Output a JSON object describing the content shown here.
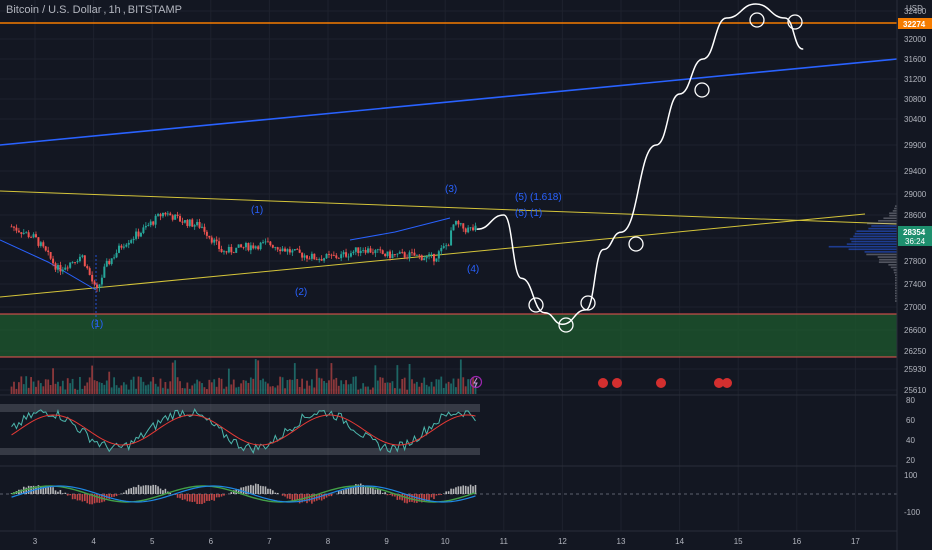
{
  "header": {
    "symbol": "Bitcoin / U.S. Dollar",
    "interval": "1h",
    "exchange": "BITSTAMP"
  },
  "price_axis": {
    "currency": "USD",
    "ticks": [
      "32400",
      "32000",
      "31600",
      "31200",
      "30800",
      "30400",
      "29900",
      "29400",
      "29000",
      "28600",
      "28200",
      "27800",
      "27400",
      "27000",
      "26600",
      "26250",
      "25930",
      "25610"
    ],
    "resistance_label": "32274",
    "current_price": "28354",
    "countdown": "36:24"
  },
  "time_axis": {
    "ticks": [
      "3",
      "4",
      "5",
      "6",
      "7",
      "8",
      "9",
      "10",
      "11",
      "12",
      "13",
      "14",
      "15",
      "16",
      "17"
    ]
  },
  "wave_labels": [
    "(1)",
    "(2)",
    "(3)",
    "(4)",
    "(5) (1.618)",
    "(5) (1)",
    "(1)"
  ],
  "oscillator_axis": {
    "ticks": [
      "80",
      "60",
      "40",
      "20"
    ]
  },
  "macd_axis": {
    "ticks": [
      "100",
      "-100"
    ]
  },
  "colors": {
    "background": "#131722",
    "up": "#26a69a",
    "down": "#ef5350",
    "resistance": "#f57c00",
    "channel": "#2962ff",
    "triangle": "#d4c43a",
    "support_zone": "#1e5a2e",
    "current_price_tag": "#1e8f6e"
  },
  "chart_data": {
    "type": "candlestick",
    "ylim": [
      25610,
      32400
    ],
    "x": [
      3,
      4,
      5,
      6,
      7,
      8,
      9,
      10
    ],
    "price_path": [
      [
        2.6,
        28400
      ],
      [
        3.0,
        28200
      ],
      [
        3.4,
        27650
      ],
      [
        3.8,
        27900
      ],
      [
        4.05,
        27250
      ],
      [
        4.2,
        27700
      ],
      [
        4.5,
        28100
      ],
      [
        4.8,
        28300
      ],
      [
        5.2,
        28650
      ],
      [
        5.5,
        28500
      ],
      [
        5.85,
        28400
      ],
      [
        6.2,
        27950
      ],
      [
        6.6,
        28050
      ],
      [
        7.0,
        28100
      ],
      [
        7.4,
        27950
      ],
      [
        7.8,
        27850
      ],
      [
        8.2,
        27880
      ],
      [
        8.6,
        28020
      ],
      [
        9.0,
        27900
      ],
      [
        9.4,
        27900
      ],
      [
        9.8,
        27850
      ],
      [
        10.05,
        28100
      ],
      [
        10.15,
        28450
      ],
      [
        10.35,
        28350
      ],
      [
        10.55,
        28354
      ]
    ],
    "levels": {
      "resistance": 32274,
      "current": 28354
    },
    "support_zone": [
      26150,
      26900
    ],
    "projected_path": [
      [
        10.55,
        28354
      ],
      [
        11.0,
        28600
      ],
      [
        11.3,
        27500
      ],
      [
        11.7,
        26900
      ],
      [
        12.0,
        26700
      ],
      [
        12.4,
        26950
      ],
      [
        12.7,
        28000
      ],
      [
        13.0,
        28300
      ],
      [
        13.6,
        29900
      ],
      [
        14.0,
        30900
      ],
      [
        14.4,
        31600
      ],
      [
        14.8,
        32300
      ],
      [
        15.3,
        32500
      ],
      [
        15.8,
        32300
      ],
      [
        16.1,
        31800
      ]
    ]
  }
}
